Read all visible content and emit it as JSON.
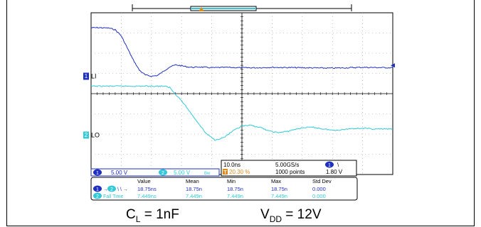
{
  "chart_data": {
    "type": "line",
    "title": "",
    "grid": true,
    "xlabel": "",
    "ylabel": "",
    "time_per_div_ns": 10.0,
    "volts_per_div": 5.0,
    "x_range_ns": [
      -50,
      50
    ],
    "series": [
      {
        "name": "LI",
        "channel": "1",
        "color": "#1f2fbf",
        "marker_label": "LI",
        "x": [
          -50,
          -47,
          -44,
          -42,
          -40,
          -38,
          -36,
          -34,
          -32,
          -30,
          -28,
          -26,
          -24,
          -22,
          -20,
          -18,
          -16,
          -14,
          -12,
          -10,
          -5,
          0,
          5,
          10,
          20,
          30,
          40,
          50
        ],
        "y": [
          12.0,
          12.0,
          11.9,
          11.5,
          10.0,
          7.0,
          4.0,
          1.5,
          0.3,
          0.0,
          0.2,
          1.2,
          2.3,
          2.8,
          2.6,
          2.3,
          2.2,
          2.3,
          2.2,
          2.1,
          2.2,
          2.1,
          2.1,
          2.2,
          2.1,
          2.0,
          2.2,
          2.1
        ]
      },
      {
        "name": "LO",
        "channel": "2",
        "color": "#33c9d6",
        "marker_label": "LO",
        "x": [
          -50,
          -40,
          -30,
          -26,
          -24,
          -20,
          -16,
          -12,
          -9,
          -6,
          -3,
          0,
          3,
          6,
          9,
          12,
          15,
          18,
          21,
          24,
          27,
          30,
          33,
          36,
          40,
          44,
          47,
          50
        ],
        "y": [
          12.1,
          12.1,
          12.1,
          12.1,
          11.8,
          8.5,
          4.5,
          0.5,
          -1.2,
          -0.6,
          1.0,
          2.2,
          2.4,
          1.9,
          1.0,
          0.6,
          0.9,
          1.5,
          1.9,
          1.9,
          1.5,
          1.2,
          1.3,
          1.6,
          1.7,
          1.5,
          1.5,
          1.5
        ]
      }
    ],
    "readouts": {
      "ch1_scale": "5.00 V",
      "ch2_scale": "5.00 V",
      "ch2_bw_symbol": "Bw",
      "timebase": "10.0ns",
      "sample_rate": "5.00GS/s",
      "trigger_pos": "20.30 %",
      "record_length": "1000 points",
      "trigger_channel": "1",
      "trigger_slope": "\\",
      "trigger_level": "1.80 V"
    },
    "measurements": {
      "headers": [
        "Value",
        "Mean",
        "Min",
        "Max",
        "Std Dev"
      ],
      "rows": [
        {
          "label": "1 → 2 \\ \\ →",
          "values": [
            "18.75ns",
            "18.75n",
            "18.75n",
            "18.75n",
            "0.000"
          ],
          "color": "#1f2fbf"
        },
        {
          "label": "2 Fall Time",
          "values": [
            "7.449ns",
            "7.449n",
            "7.449n",
            "7.449n",
            "0.000"
          ],
          "color": "#33c9d6"
        }
      ]
    }
  },
  "caption": {
    "cl_main": "C",
    "cl_sub": "L",
    "cl_rest": " = 1nF",
    "vdd_main": "V",
    "vdd_sub": "DD",
    "vdd_rest": " = 12V"
  }
}
